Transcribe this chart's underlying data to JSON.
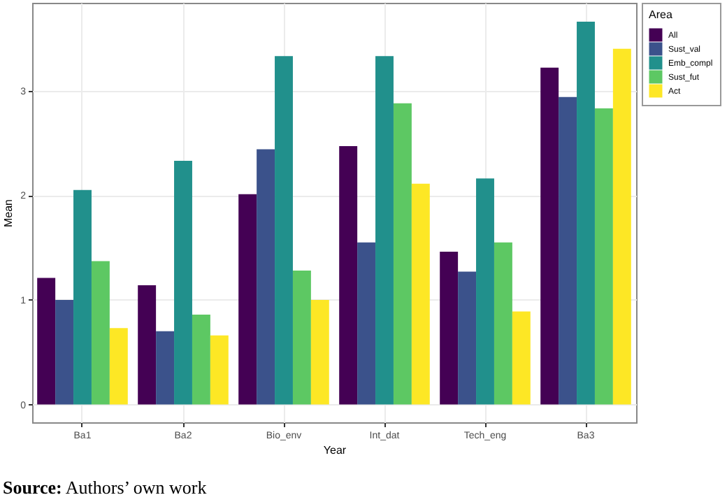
{
  "chart_data": {
    "type": "bar",
    "xlabel": "Year",
    "ylabel": "Mean",
    "legend_title": "Area",
    "legend": "right",
    "grid": true,
    "categories": [
      "Ba1",
      "Ba2",
      "Bio_env",
      "Int_dat",
      "Tech_eng",
      "Ba3"
    ],
    "ylim": [
      -0.17,
      3.84
    ],
    "yticks": [
      0,
      1,
      2,
      3
    ],
    "series": [
      {
        "name": "All",
        "color": "#440154",
        "values": [
          1.21,
          1.14,
          2.01,
          2.47,
          1.46,
          3.22
        ]
      },
      {
        "name": "Sust_val",
        "color": "#3b528b",
        "values": [
          1.0,
          0.7,
          2.44,
          1.55,
          1.27,
          2.94
        ]
      },
      {
        "name": "Emb_compl",
        "color": "#21908c",
        "values": [
          2.05,
          2.33,
          3.33,
          3.33,
          2.16,
          3.66
        ]
      },
      {
        "name": "Sust_fut",
        "color": "#5dc863",
        "values": [
          1.37,
          0.86,
          1.28,
          2.88,
          1.55,
          2.83
        ]
      },
      {
        "name": "Act",
        "color": "#fde725",
        "values": [
          0.73,
          0.66,
          1.0,
          2.11,
          0.89,
          3.4
        ]
      }
    ],
    "annotations": [
      "Source: Authors’ own work"
    ]
  }
}
